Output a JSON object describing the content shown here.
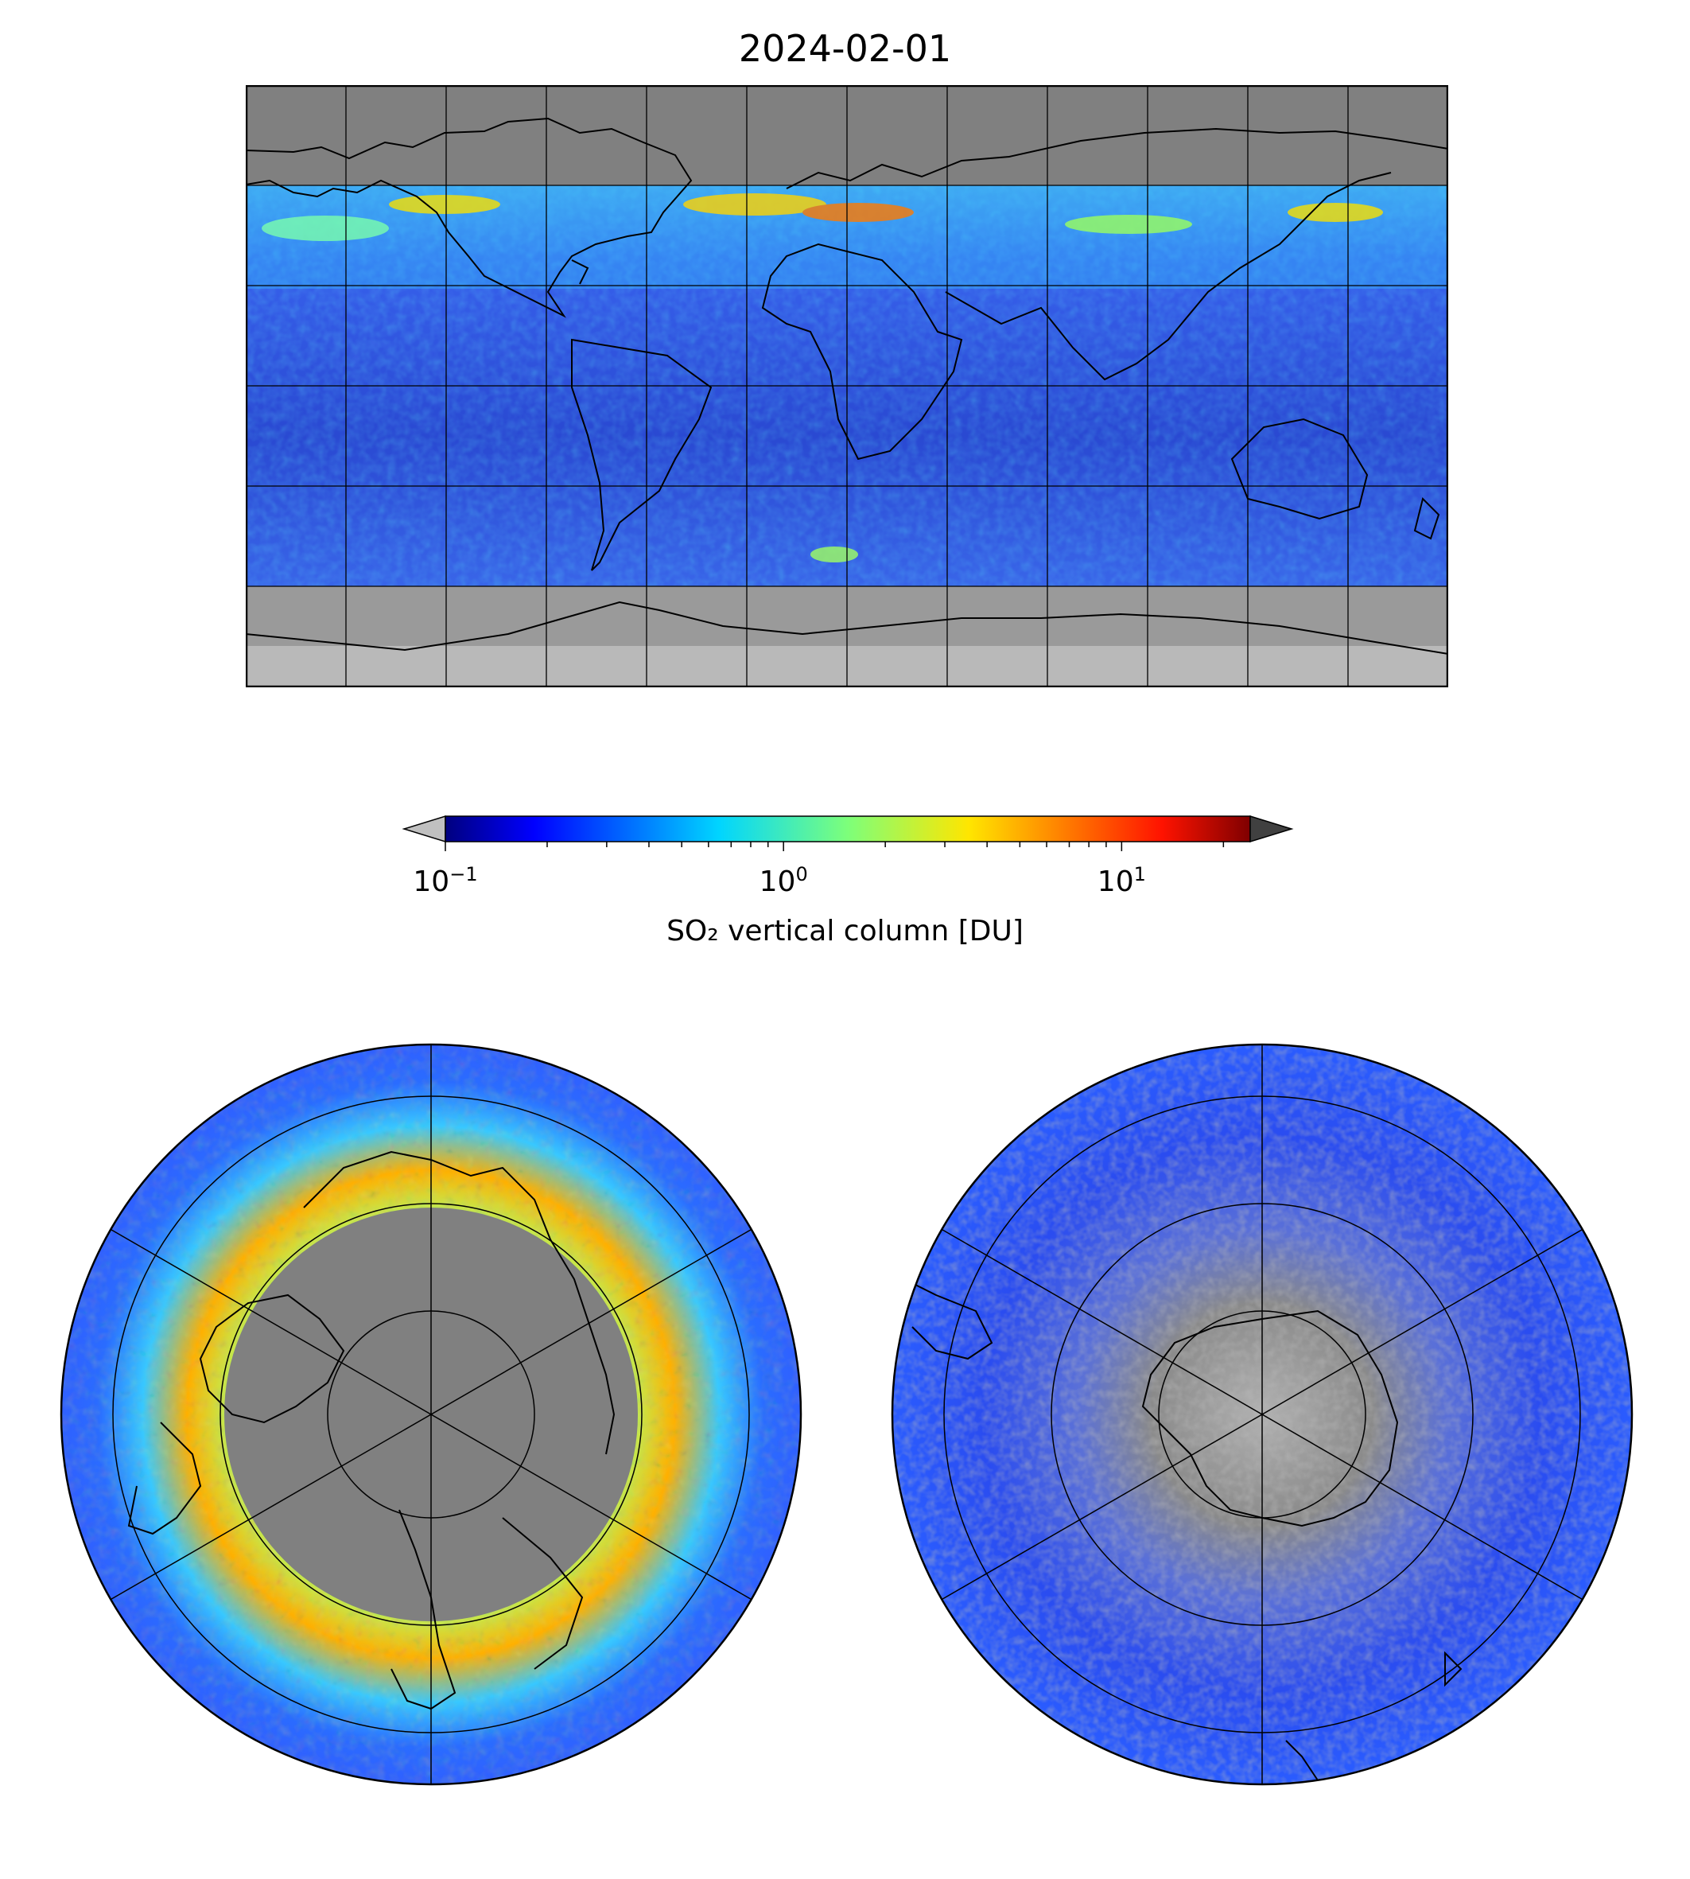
{
  "figure": {
    "title": "2024-02-01"
  },
  "colorbar": {
    "label": "SO₂ vertical column [DU]",
    "scale": "log",
    "range": [
      0.1,
      24
    ],
    "colormap": "jet",
    "under_color": "#c0c0c0",
    "over_color": "#404040",
    "ticks": [
      {
        "value": 0.1,
        "base": "10",
        "exponent": "−1"
      },
      {
        "value": 1,
        "base": "10",
        "exponent": "0"
      },
      {
        "value": 10,
        "base": "10",
        "exponent": "1"
      }
    ]
  },
  "maps": {
    "global": {
      "projection": "plate-carree",
      "gridlines": "30 degrees",
      "background": "#808080"
    },
    "north_polar": {
      "projection": "north-polar-stereographic",
      "gridlines": "30 degrees"
    },
    "south_polar": {
      "projection": "south-polar-stereographic",
      "gridlines": "30 degrees"
    }
  },
  "colors": {
    "no_data": "#808080",
    "below_range": "#c0c0c0",
    "coastline": "#000000"
  }
}
